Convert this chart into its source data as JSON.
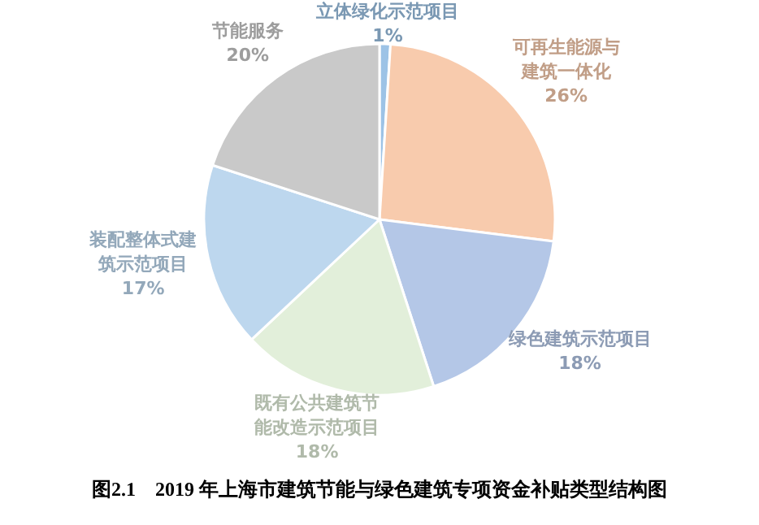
{
  "chart_data": {
    "type": "pie",
    "title": "图2.1　2019 年上海市建筑节能与绿色建筑专项资金补贴类型结构图",
    "categories": [
      "立体绿化示范项目",
      "可再生能源与建筑一体化",
      "绿色建筑示范项目",
      "既有公共建筑节能改造示范项目",
      "装配整体式建筑示范项目",
      "节能服务"
    ],
    "values": [
      1,
      26,
      18,
      18,
      17,
      20
    ],
    "value_labels": [
      "1%",
      "26%",
      "18%",
      "18%",
      "17%",
      "20%"
    ],
    "colors": [
      "#9dc3e6",
      "#f8cbad",
      "#b4c7e7",
      "#e2efda",
      "#bdd7ee",
      "#c9c9c9"
    ],
    "legend": false
  }
}
